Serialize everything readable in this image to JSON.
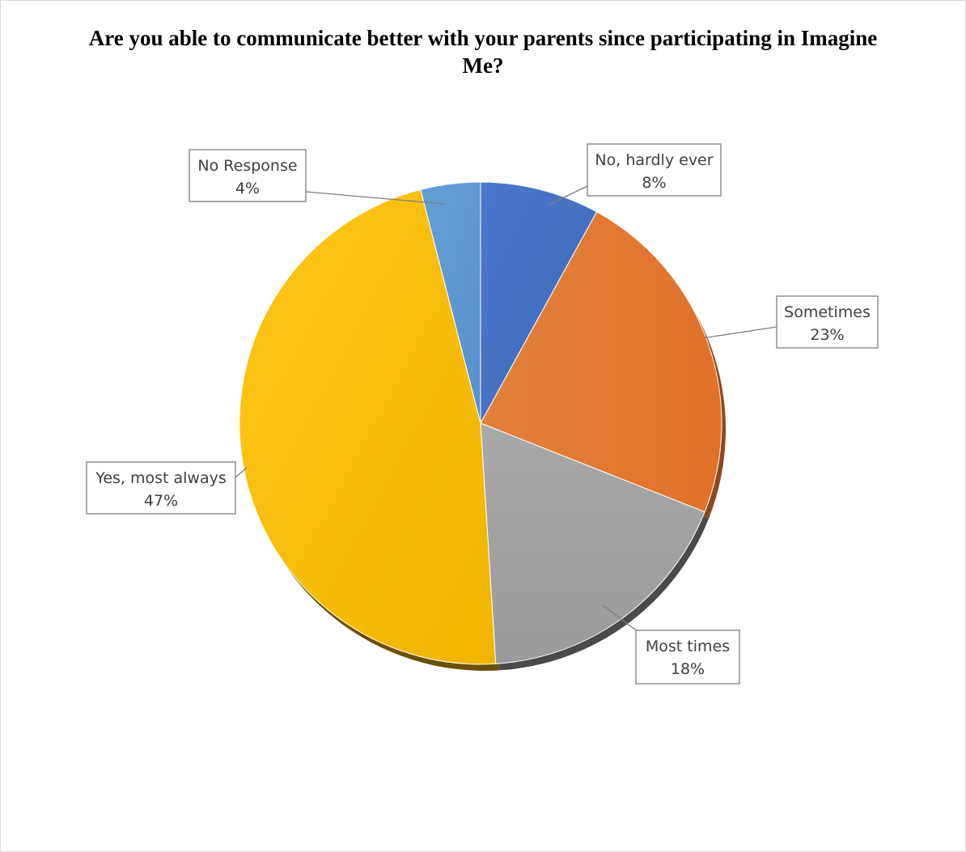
{
  "chart_data": {
    "type": "pie",
    "title": "Are you able to communicate better with your parents since participating in Imagine Me?",
    "slices": [
      {
        "label": "No, hardly ever",
        "value": 8,
        "value_label": "8%",
        "color": "#4472c4"
      },
      {
        "label": "Sometimes",
        "value": 23,
        "value_label": "23%",
        "color": "#ed7d31"
      },
      {
        "label": "Most times",
        "value": 18,
        "value_label": "18%",
        "color": "#a5a5a5"
      },
      {
        "label": "Yes, most always",
        "value": 47,
        "value_label": "47%",
        "color": "#ffc000"
      },
      {
        "label": "No Response",
        "value": 4,
        "value_label": "4%",
        "color": "#5b9bd5"
      }
    ],
    "legend": "none",
    "data_labels": "callouts"
  }
}
